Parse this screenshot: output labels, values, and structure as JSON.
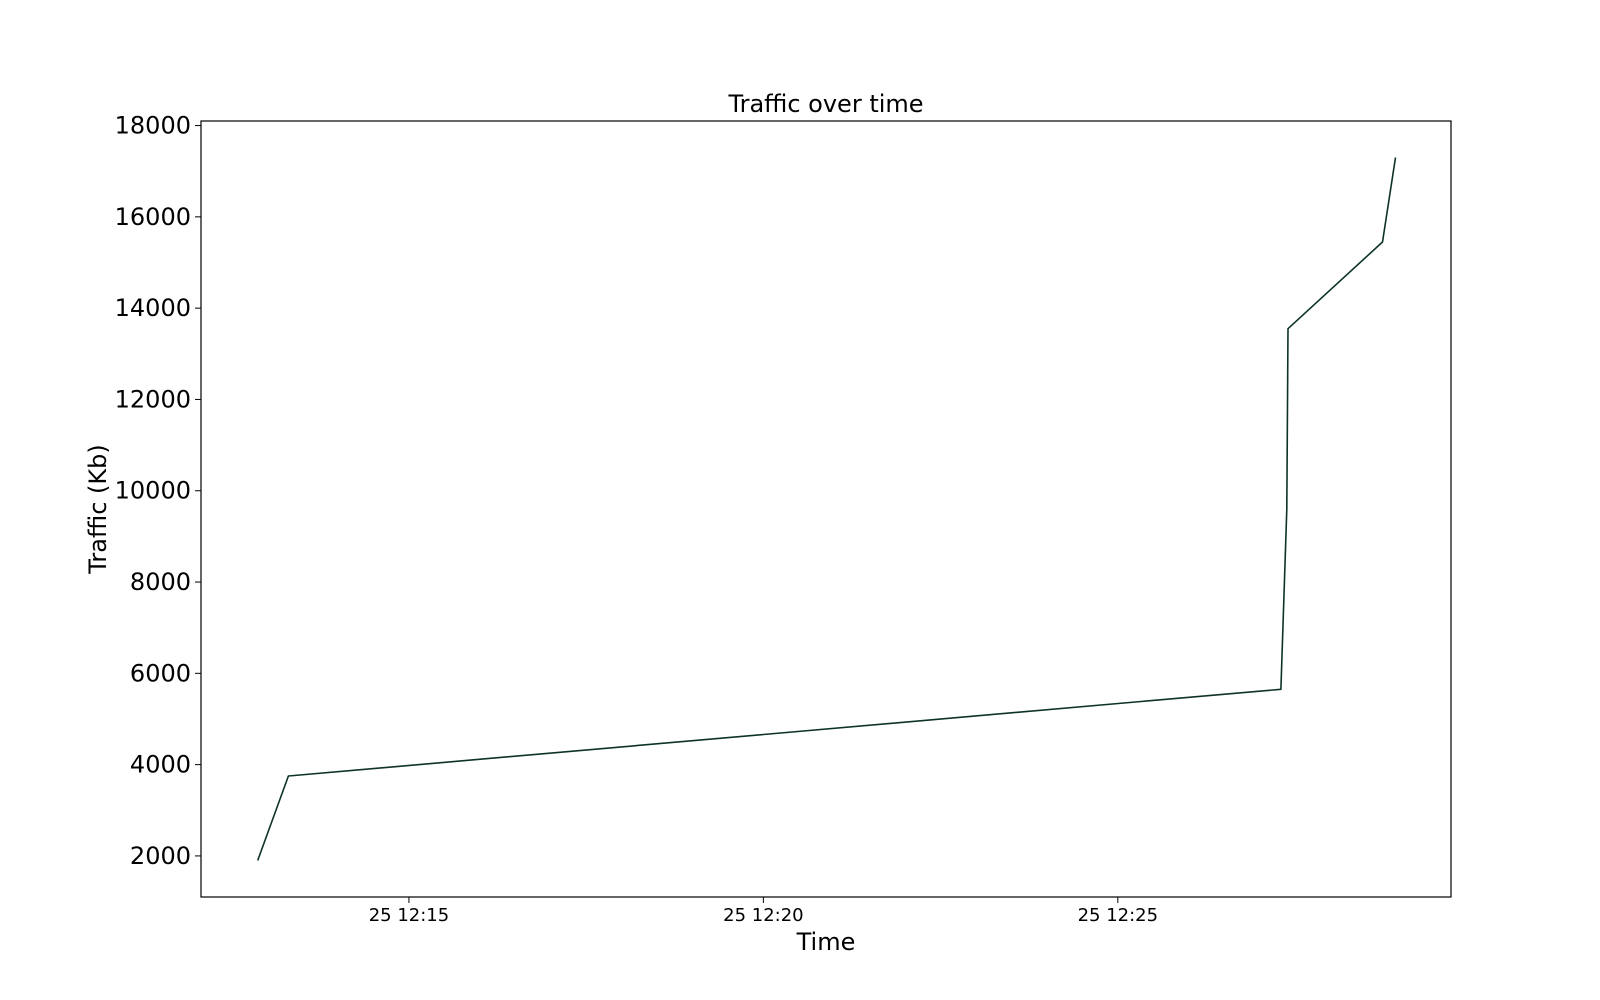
{
  "chart_data": {
    "type": "line",
    "title": "Traffic over time",
    "xlabel": "Time",
    "ylabel": "Traffic (Kb)",
    "x_ticks": [
      {
        "value": "2000-01-25 12:15",
        "label": "25 12:15"
      },
      {
        "value": "2000-01-25 12:20",
        "label": "25 12:20"
      },
      {
        "value": "2000-01-25 12:25",
        "label": "25 12:25"
      }
    ],
    "y_ticks": [
      2000,
      4000,
      6000,
      8000,
      10000,
      12000,
      14000,
      16000,
      18000
    ],
    "xlim": [
      "2000-01-25 12:12:04",
      "2000-01-25 12:29:42"
    ],
    "ylim": [
      1100,
      18100
    ],
    "grid": false,
    "legend": false,
    "line_color": "#0d3328",
    "series": [
      {
        "x": [
          "2000-01-25 12:12:52",
          "2000-01-25 12:13:18",
          "2000-01-25 12:27:18",
          "2000-01-25 12:27:23",
          "2000-01-25 12:27:24",
          "2000-01-25 12:28:44",
          "2000-01-25 12:28:55"
        ],
        "y": [
          1900,
          3750,
          5650,
          9600,
          13550,
          15450,
          17300
        ]
      }
    ]
  }
}
